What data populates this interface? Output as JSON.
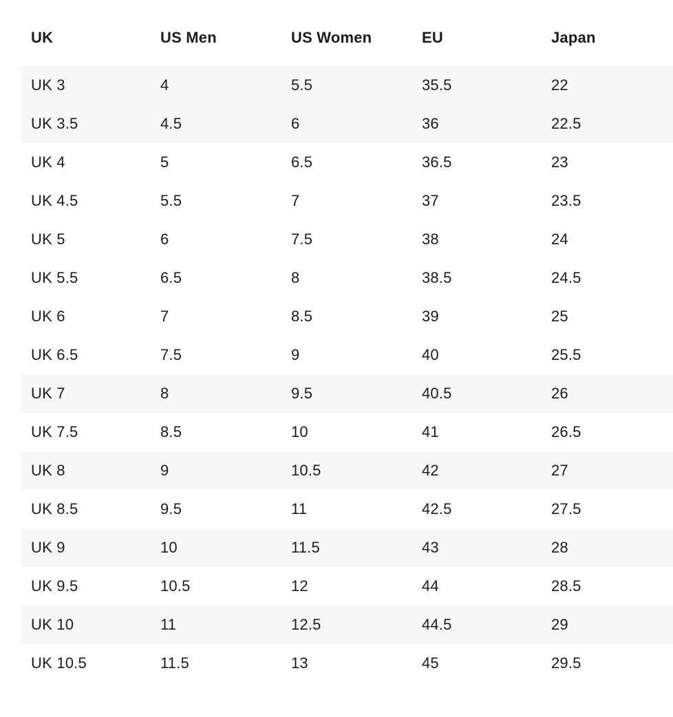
{
  "chart_data": {
    "type": "table",
    "columns": [
      "UK",
      "US Men",
      "US Women",
      "EU",
      "Japan"
    ],
    "rows": [
      [
        "UK 3",
        "4",
        "5.5",
        "35.5",
        "22"
      ],
      [
        "UK 3.5",
        "4.5",
        "6",
        "36",
        "22.5"
      ],
      [
        "UK 4",
        "5",
        "6.5",
        "36.5",
        "23"
      ],
      [
        "UK 4.5",
        "5.5",
        "7",
        "37",
        "23.5"
      ],
      [
        "UK 5",
        "6",
        "7.5",
        "38",
        "24"
      ],
      [
        "UK 5.5",
        "6.5",
        "8",
        "38.5",
        "24.5"
      ],
      [
        "UK 6",
        "7",
        "8.5",
        "39",
        "25"
      ],
      [
        "UK 6.5",
        "7.5",
        "9",
        "40",
        "25.5"
      ],
      [
        "UK 7",
        "8",
        "9.5",
        "40.5",
        "26"
      ],
      [
        "UK 7.5",
        "8.5",
        "10",
        "41",
        "26.5"
      ],
      [
        "UK 8",
        "9",
        "10.5",
        "42",
        "27"
      ],
      [
        "UK 8.5",
        "9.5",
        "11",
        "42.5",
        "27.5"
      ],
      [
        "UK 9",
        "10",
        "11.5",
        "43",
        "28"
      ],
      [
        "UK 9.5",
        "10.5",
        "12",
        "44",
        "28.5"
      ],
      [
        "UK 10",
        "11",
        "12.5",
        "44.5",
        "29"
      ],
      [
        "UK 10.5",
        "11.5",
        "13",
        "45",
        "29.5"
      ]
    ],
    "layout": {
      "shaded_row_indices": [
        0,
        1,
        8,
        10,
        12,
        14
      ],
      "stripe_color": "#f7f7f7",
      "text_color": "#1c1c1c",
      "background_color": "#ffffff",
      "grid": false,
      "legend": false
    }
  }
}
